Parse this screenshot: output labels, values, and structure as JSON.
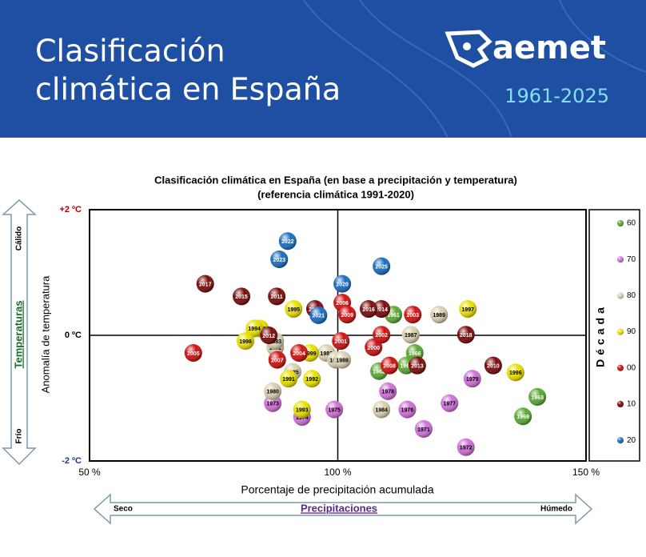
{
  "header": {
    "title_lines": [
      "Clasificación",
      "climática en España"
    ],
    "logo": "aemet",
    "period": "1961-2025"
  },
  "chart_data": {
    "type": "scatter",
    "title_lines": [
      "Clasificación climática en España (en base a precipitación y temperatura)",
      "(referencia climática 1991-2020)"
    ],
    "x_label": "Porcentaje de precipitación acumulada",
    "y_label": "Anomalía de temperatura",
    "legend_title": "Década",
    "y_arrow": {
      "title": "Temperaturas",
      "top": "Cálido",
      "bottom": "Frío"
    },
    "x_arrow": {
      "title": "Precipitaciones",
      "left": "Seco",
      "right": "Húmedo"
    },
    "xlim": [
      50,
      150
    ],
    "ylim": [
      -2,
      2
    ],
    "xticks": [
      {
        "value": 50,
        "label": "50 %"
      },
      {
        "value": 100,
        "label": "100 %"
      },
      {
        "value": 150,
        "label": "150 %"
      }
    ],
    "yticks": [
      {
        "value": -2,
        "label": "-2 ºC"
      },
      {
        "value": 0,
        "label": "0 ºC"
      },
      {
        "value": 2,
        "label": "+2 ºC"
      }
    ],
    "series": [
      {
        "name": "60",
        "color": "#5aa832",
        "labels": [
          "1961",
          "1962",
          "1963",
          "1966",
          "1967",
          "1969"
        ],
        "x": [
          111.2,
          108.3,
          140.2,
          115.5,
          113.8,
          137.3
        ],
        "values": [
          0.33,
          -0.57,
          -0.98,
          -0.28,
          -0.48,
          -1.29
        ]
      },
      {
        "name": "70",
        "color": "#d070d8",
        "labels": [
          "1971",
          "1972",
          "1973",
          "1974",
          "1975",
          "1976",
          "1977",
          "1978",
          "1979"
        ],
        "x": [
          117.3,
          125.8,
          86.9,
          92.8,
          99.3,
          114.0,
          122.5,
          110.1,
          127.1
        ],
        "values": [
          -1.49,
          -1.78,
          -1.08,
          -1.3,
          -1.18,
          -1.18,
          -1.08,
          -0.89,
          -0.69
        ]
      },
      {
        "name": "80",
        "color": "#d8cfb0",
        "labels": [
          "1980",
          "1981",
          "1982",
          "1983",
          "1984",
          "1985",
          "1986",
          "1987",
          "1988",
          "1989"
        ],
        "x": [
          86.9,
          87.4,
          97.7,
          87.4,
          108.8,
          90.9,
          99.6,
          114.7,
          100.9,
          120.4
        ],
        "values": [
          -0.89,
          -0.19,
          -0.28,
          -0.09,
          -1.18,
          -0.58,
          -0.39,
          0.01,
          -0.39,
          0.33
        ]
      },
      {
        "name": "90",
        "color": "#e8e000",
        "labels": [
          "1990",
          "1991",
          "1992",
          "1993",
          "1994",
          "1995",
          "1996",
          "1997",
          "1998",
          "1999"
        ],
        "x": [
          84.3,
          90.1,
          94.8,
          92.8,
          83.2,
          91.1,
          135.8,
          126.2,
          81.4,
          94.4
        ],
        "values": [
          0.11,
          -0.69,
          -0.69,
          -1.18,
          0.11,
          0.42,
          -0.59,
          0.42,
          -0.09,
          -0.28
        ]
      },
      {
        "name": "00",
        "color": "#d01010",
        "labels": [
          "2000",
          "2001",
          "2002",
          "2003",
          "2004",
          "2005",
          "2006",
          "2007",
          "2008",
          "2009"
        ],
        "x": [
          107.2,
          100.6,
          108.8,
          115.1,
          92.2,
          70.9,
          100.9,
          87.8,
          110.4,
          101.9
        ],
        "values": [
          -0.19,
          -0.09,
          0.01,
          0.33,
          -0.28,
          -0.28,
          0.52,
          -0.39,
          -0.48,
          0.33
        ]
      },
      {
        "name": "10",
        "color": "#7a0a0a",
        "labels": [
          "2010",
          "2011",
          "2012",
          "2013",
          "2014",
          "2015",
          "2016",
          "2017",
          "2018",
          "2019"
        ],
        "x": [
          131.3,
          87.7,
          86.1,
          116.0,
          108.8,
          80.6,
          106.2,
          73.3,
          125.8,
          95.4
        ],
        "values": [
          -0.48,
          0.62,
          0.0,
          -0.48,
          0.42,
          0.62,
          0.42,
          0.82,
          0.01,
          0.42
        ]
      },
      {
        "name": "20",
        "color": "#1a6cc0",
        "labels": [
          "2020",
          "2021",
          "2022",
          "2023",
          "2025"
        ],
        "x": [
          100.9,
          96.1,
          89.9,
          88.2,
          108.8
        ],
        "values": [
          0.82,
          0.32,
          1.5,
          1.21,
          1.1
        ]
      }
    ]
  }
}
